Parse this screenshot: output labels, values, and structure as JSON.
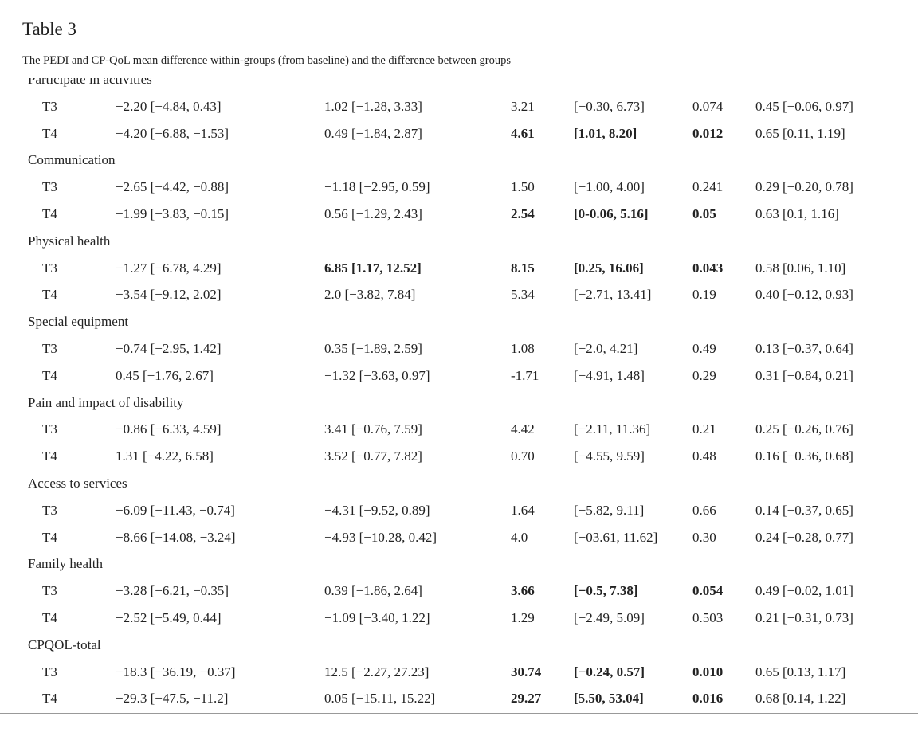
{
  "header": {
    "title": "Table 3",
    "caption": "The PEDI and CP-QoL mean difference within-groups (from baseline) and the difference between groups"
  },
  "table": {
    "sections": [
      {
        "title": "Participate in activities",
        "rows": [
          {
            "label": "T3",
            "cells": [
              "−2.20 [−4.84, 0.43]",
              "1.02 [−1.28, 3.33]",
              "3.21",
              "[−0.30, 6.73]",
              "0.074",
              "0.45 [−0.06, 0.97]"
            ]
          },
          {
            "label": "T4",
            "cells": [
              "−4.20 [−6.88, −1.53]",
              "0.49 [−1.84, 2.87]",
              "4.61",
              "[1.01, 8.20]",
              "0.012",
              "0.65 [0.11, 1.19]"
            ],
            "bold": [
              2,
              3,
              4
            ]
          }
        ]
      },
      {
        "title": "Communication",
        "rows": [
          {
            "label": "T3",
            "cells": [
              "−2.65 [−4.42, −0.88]",
              "−1.18 [−2.95, 0.59]",
              "1.50",
              "[−1.00, 4.00]",
              "0.241",
              "0.29 [−0.20, 0.78]"
            ]
          },
          {
            "label": "T4",
            "cells": [
              "−1.99 [−3.83, −0.15]",
              "0.56 [−1.29, 2.43]",
              "2.54",
              "[0-0.06, 5.16]",
              "0.05",
              "0.63 [0.1, 1.16]"
            ],
            "bold": [
              2,
              3,
              4
            ]
          }
        ]
      },
      {
        "title": "Physical health",
        "rows": [
          {
            "label": "T3",
            "cells": [
              "−1.27 [−6.78, 4.29]",
              "6.85 [1.17, 12.52]",
              "8.15",
              "[0.25, 16.06]",
              "0.043",
              "0.58 [0.06, 1.10]"
            ],
            "bold": [
              1,
              2,
              3,
              4
            ]
          },
          {
            "label": "T4",
            "cells": [
              "−3.54 [−9.12, 2.02]",
              "2.0 [−3.82, 7.84]",
              "5.34",
              "[−2.71, 13.41]",
              "0.19",
              "0.40 [−0.12, 0.93]"
            ]
          }
        ]
      },
      {
        "title": "Special equipment",
        "rows": [
          {
            "label": "T3",
            "cells": [
              "−0.74 [−2.95, 1.42]",
              "0.35 [−1.89, 2.59]",
              "1.08",
              "[−2.0, 4.21]",
              "0.49",
              "0.13 [−0.37, 0.64]"
            ]
          },
          {
            "label": "T4",
            "cells": [
              "0.45 [−1.76, 2.67]",
              "−1.32 [−3.63, 0.97]",
              "-1.71",
              "[−4.91, 1.48]",
              "0.29",
              "0.31 [−0.84, 0.21]"
            ]
          }
        ]
      },
      {
        "title": "Pain and impact of disability",
        "rows": [
          {
            "label": "T3",
            "cells": [
              "−0.86 [−6.33, 4.59]",
              "3.41 [−0.76, 7.59]",
              "4.42",
              "[−2.11, 11.36]",
              "0.21",
              "0.25 [−0.26, 0.76]"
            ]
          },
          {
            "label": "T4",
            "cells": [
              "1.31 [−4.22, 6.58]",
              "3.52 [−0.77, 7.82]",
              "0.70",
              "[−4.55, 9.59]",
              "0.48",
              "0.16 [−0.36, 0.68]"
            ]
          }
        ]
      },
      {
        "title": "Access to services",
        "rows": [
          {
            "label": "T3",
            "cells": [
              "−6.09 [−11.43, −0.74]",
              "−4.31 [−9.52, 0.89]",
              "1.64",
              "[−5.82, 9.11]",
              "0.66",
              "0.14 [−0.37, 0.65]"
            ]
          },
          {
            "label": "T4",
            "cells": [
              "−8.66 [−14.08, −3.24]",
              "−4.93 [−10.28, 0.42]",
              "4.0",
              "[−03.61, 11.62]",
              "0.30",
              "0.24 [−0.28, 0.77]"
            ]
          }
        ]
      },
      {
        "title": "Family health",
        "rows": [
          {
            "label": "T3",
            "cells": [
              "−3.28 [−6.21, −0.35]",
              "0.39 [−1.86, 2.64]",
              "3.66",
              "[−0.5, 7.38]",
              "0.054",
              "0.49 [−0.02, 1.01]"
            ],
            "bold": [
              2,
              3,
              4
            ]
          },
          {
            "label": "T4",
            "cells": [
              "−2.52 [−5.49, 0.44]",
              "−1.09 [−3.40, 1.22]",
              "1.29",
              "[−2.49, 5.09]",
              "0.503",
              "0.21 [−0.31, 0.73]"
            ]
          }
        ]
      },
      {
        "title": "CPQOL-total",
        "rows": [
          {
            "label": "T3",
            "cells": [
              "−18.3 [−36.19, −0.37]",
              "12.5 [−2.27, 27.23]",
              "30.74",
              "[−0.24, 0.57]",
              "0.010",
              "0.65 [0.13, 1.17]"
            ],
            "bold": [
              2,
              3,
              4
            ]
          },
          {
            "label": "T4",
            "cells": [
              "−29.3 [−47.5, −11.2]",
              "0.05 [−15.11, 15.22]",
              "29.27",
              "[5.50, 53.04]",
              "0.016",
              "0.68 [0.14, 1.22]"
            ],
            "bold": [
              2,
              3,
              4
            ]
          }
        ]
      }
    ]
  }
}
